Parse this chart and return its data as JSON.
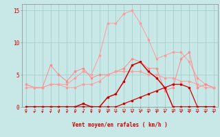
{
  "x": [
    0,
    1,
    2,
    3,
    4,
    5,
    6,
    7,
    8,
    9,
    10,
    11,
    12,
    13,
    14,
    15,
    16,
    17,
    18,
    19,
    20,
    21,
    22,
    23
  ],
  "line_rafales": [
    3.0,
    3.0,
    3.0,
    3.5,
    3.5,
    3.5,
    4.5,
    5.5,
    5.0,
    8.0,
    13.0,
    13.0,
    14.5,
    15.0,
    13.0,
    10.5,
    7.5,
    8.0,
    8.5,
    8.5,
    7.0,
    4.5,
    3.5,
    3.0
  ],
  "line_cross": [
    3.5,
    3.0,
    3.0,
    6.5,
    5.0,
    4.0,
    5.5,
    6.0,
    4.5,
    5.0,
    5.0,
    5.5,
    6.0,
    7.5,
    7.0,
    6.0,
    6.0,
    2.5,
    3.0,
    7.5,
    8.5,
    3.0,
    3.5,
    3.0
  ],
  "line_smooth": [
    3.5,
    3.0,
    3.0,
    3.5,
    3.5,
    3.0,
    3.0,
    3.5,
    3.5,
    4.0,
    5.0,
    5.5,
    5.5,
    5.5,
    5.5,
    5.0,
    5.0,
    4.5,
    4.5,
    4.0,
    4.0,
    3.5,
    3.0,
    3.0
  ],
  "line_wind_main": [
    0.0,
    0.0,
    0.0,
    0.0,
    0.0,
    0.0,
    0.0,
    0.5,
    0.0,
    0.0,
    1.5,
    2.0,
    4.0,
    6.5,
    7.0,
    5.5,
    4.5,
    3.0,
    0.0,
    0.0,
    0.0,
    0.0,
    0.0,
    0.0
  ],
  "line_wind_flat": [
    0.0,
    0.0,
    0.0,
    0.0,
    0.0,
    0.0,
    0.0,
    0.0,
    0.0,
    0.0,
    0.0,
    0.0,
    0.5,
    1.0,
    1.5,
    2.0,
    2.5,
    3.0,
    3.5,
    3.5,
    3.0,
    0.0,
    0.0,
    0.0
  ],
  "color_light_pink": "#ff9999",
  "color_med_pink": "#ff8888",
  "color_dark_red": "#cc0000",
  "bg_color": "#c8e8e8",
  "grid_color": "#a0c8c8",
  "text_color": "#cc0000",
  "xlabel": "Vent moyen/en rafales ( km/h )",
  "ylim": [
    0,
    16
  ],
  "yticks": [
    0,
    5,
    10,
    15
  ],
  "xlim": [
    -0.5,
    23.5
  ]
}
